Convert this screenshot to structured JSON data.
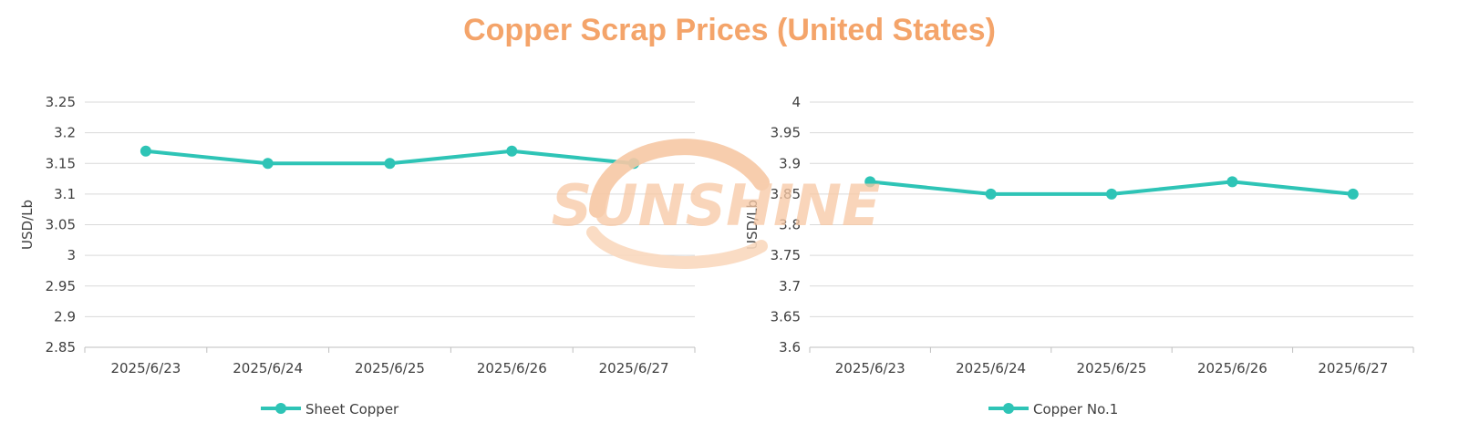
{
  "title": "Copper Scrap Prices (United States)",
  "watermark": "SUNSHINE",
  "colors": {
    "title": "#F4A46A",
    "line": "#2EC4B6",
    "grid": "#D9D9D9",
    "watermark": "#F7C8A5"
  },
  "chart_data": [
    {
      "type": "line",
      "categories": [
        "2025/6/23",
        "2025/6/24",
        "2025/6/25",
        "2025/6/26",
        "2025/6/27"
      ],
      "series": [
        {
          "name": "Sheet Copper",
          "values": [
            3.17,
            3.15,
            3.15,
            3.17,
            3.15
          ]
        }
      ],
      "ylabel": "USD/Lb",
      "ylim": [
        2.85,
        3.25
      ],
      "yticks": [
        "3.25",
        "3.2",
        "3.15",
        "3.1",
        "3.05",
        "3",
        "2.95",
        "2.9",
        "2.85"
      ],
      "grid": true,
      "legend": "bottom"
    },
    {
      "type": "line",
      "categories": [
        "2025/6/23",
        "2025/6/24",
        "2025/6/25",
        "2025/6/26",
        "2025/6/27"
      ],
      "series": [
        {
          "name": "Copper No.1",
          "values": [
            3.87,
            3.85,
            3.85,
            3.87,
            3.85
          ]
        }
      ],
      "ylabel": "USD/Lb",
      "ylim": [
        3.6,
        4.0
      ],
      "yticks": [
        "4",
        "3.95",
        "3.9",
        "3.85",
        "3.8",
        "3.75",
        "3.7",
        "3.65",
        "3.6"
      ],
      "grid": true,
      "legend": "bottom"
    }
  ]
}
